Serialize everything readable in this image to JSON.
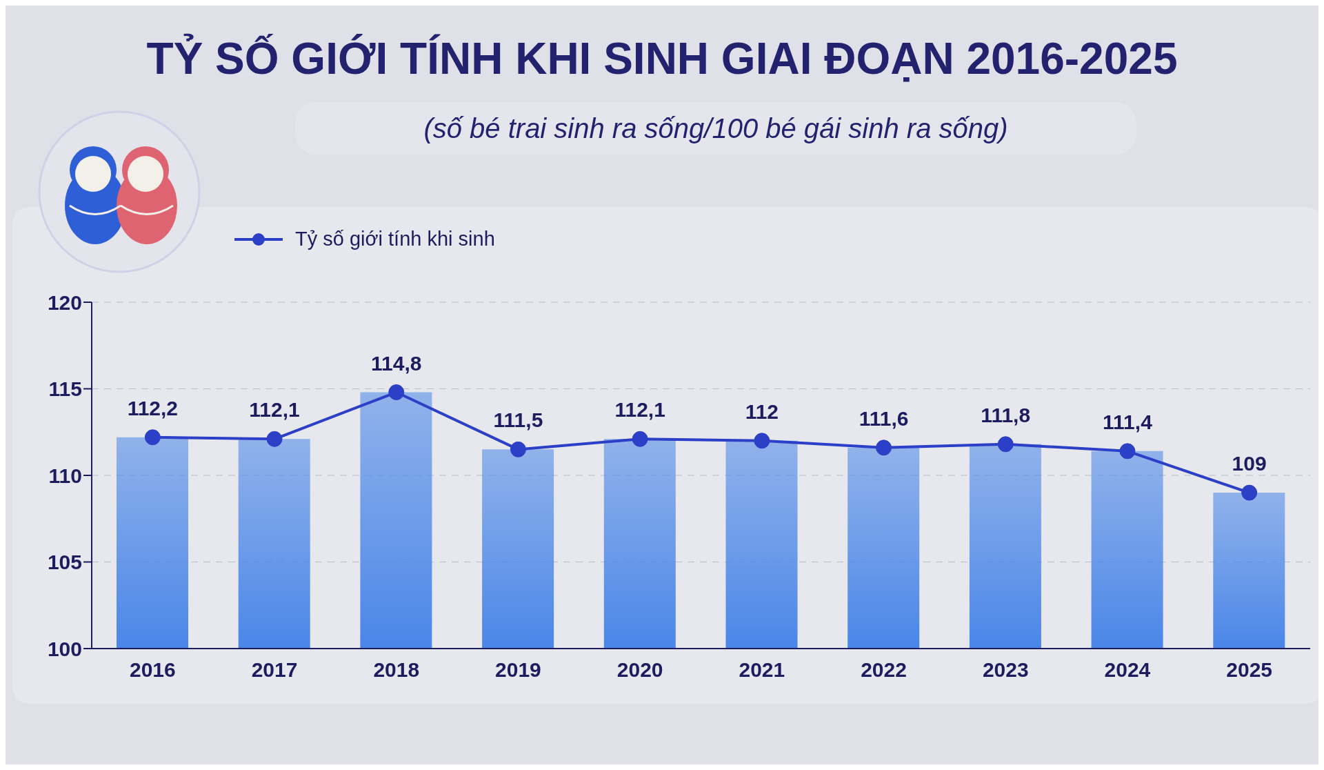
{
  "chart_data": {
    "type": "bar",
    "title": "TỶ SỐ GIỚI TÍNH KHI SINH GIAI ĐOẠN 2016-2025",
    "subtitle": "(số bé trai sinh ra sống/100 bé gái sinh ra sống)",
    "categories": [
      "2016",
      "2017",
      "2018",
      "2019",
      "2020",
      "2021",
      "2022",
      "2023",
      "2024",
      "2025"
    ],
    "series": [
      {
        "color": "#4a86e8",
        "values": [
          112.2,
          112.1,
          114.8,
          111.5,
          112.1,
          112,
          111.6,
          111.8,
          111.4,
          109
        ]
      },
      {
        "type": "line",
        "name": "Tỷ số giới tính khi sinh",
        "color": "#2c3fc7",
        "values": [
          112.2,
          112.1,
          114.8,
          111.5,
          112.1,
          112,
          111.6,
          111.8,
          111.4,
          109
        ],
        "value_labels": [
          "112,2",
          "112,1",
          "114,8",
          "111,5",
          "112,1",
          "112",
          "111,6",
          "111,8",
          "111,4",
          "109"
        ]
      }
    ],
    "ylim": [
      100,
      120
    ],
    "yticks": [
      100,
      105,
      110,
      115,
      120
    ],
    "grid": "y",
    "legend": "top left",
    "marker": "circle",
    "line_style": "solid"
  }
}
